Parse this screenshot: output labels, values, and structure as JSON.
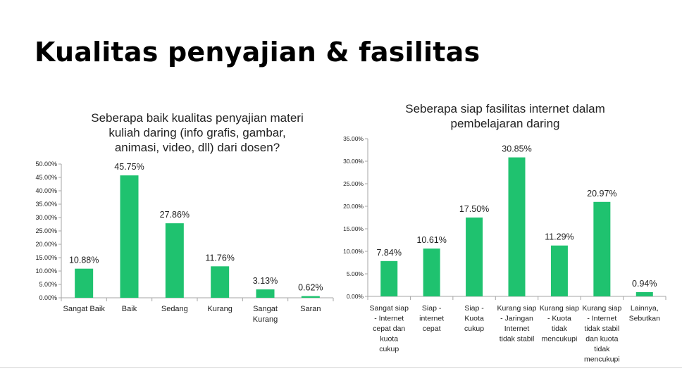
{
  "slide_title": "Kualitas penyajian & fasilitas",
  "colors": {
    "bar": "#1fc26f",
    "axis": "#a6a6a6",
    "text": "#222222"
  },
  "chart_data": [
    {
      "type": "bar",
      "title": "Seberapa baik kualitas penyajian materi kuliah daring (info grafis, gambar, animasi, video, dll) dari dosen?",
      "title_lines": [
        "Seberapa baik kualitas penyajian materi",
        "kuliah daring (info grafis, gambar,",
        "animasi, video, dll) dari dosen?"
      ],
      "categories": [
        "Sangat Baik",
        "Baik",
        "Sedang",
        "Kurang",
        "Sangat Kurang",
        "Saran"
      ],
      "category_lines": [
        [
          "Sangat Baik"
        ],
        [
          "Baik"
        ],
        [
          "Sedang"
        ],
        [
          "Kurang"
        ],
        [
          "Sangat",
          "Kurang"
        ],
        [
          "Saran"
        ]
      ],
      "values": [
        10.88,
        45.75,
        27.86,
        11.76,
        3.13,
        0.62
      ],
      "data_labels": [
        "10.88%",
        "45.75%",
        "27.86%",
        "11.76%",
        "3.13%",
        "0.62%"
      ],
      "ylim": [
        0,
        50
      ],
      "yticks": [
        "0.00%",
        "5.00%",
        "10.00%",
        "15.00%",
        "20.00%",
        "25.00%",
        "30.00%",
        "35.00%",
        "40.00%",
        "45.00%",
        "50.00%"
      ],
      "grid": false,
      "legend": "none"
    },
    {
      "type": "bar",
      "title": "Seberapa siap fasilitas internet dalam pembelajaran daring",
      "title_lines": [
        "Seberapa siap fasilitas internet dalam",
        "pembelajaran daring"
      ],
      "categories": [
        "Sangat siap - Internet cepat dan kuota cukup",
        "Siap - internet cepat",
        "Siap - Kuota cukup",
        "Kurang siap - Jaringan Internet tidak stabil",
        "Kurang siap - Kuota tidak mencukupi",
        "Kurang siap - Internet tidak stabil dan kuota tidak mencukupi",
        "Lainnya, Sebutkan"
      ],
      "category_lines": [
        [
          "Sangat siap",
          "- Internet",
          "cepat dan",
          "kuota",
          "cukup"
        ],
        [
          "Siap -",
          "internet",
          "cepat"
        ],
        [
          "Siap -",
          "Kuota",
          "cukup"
        ],
        [
          "Kurang siap",
          "- Jaringan",
          "Internet",
          "tidak stabil"
        ],
        [
          "Kurang siap",
          "- Kuota",
          "tidak",
          "mencukupi"
        ],
        [
          "Kurang siap",
          "- Internet",
          "tidak stabil",
          "dan kuota",
          "tidak",
          "mencukupi"
        ],
        [
          "Lainnya,",
          "Sebutkan"
        ]
      ],
      "values": [
        7.84,
        10.61,
        17.5,
        30.85,
        11.29,
        20.97,
        0.94
      ],
      "data_labels": [
        "7.84%",
        "10.61%",
        "17.50%",
        "30.85%",
        "11.29%",
        "20.97%",
        "0.94%"
      ],
      "ylim": [
        0,
        35
      ],
      "yticks": [
        "0.00%",
        "5.00%",
        "10.00%",
        "15.00%",
        "20.00%",
        "25.00%",
        "30.00%",
        "35.00%"
      ],
      "grid": false,
      "legend": "none"
    }
  ]
}
